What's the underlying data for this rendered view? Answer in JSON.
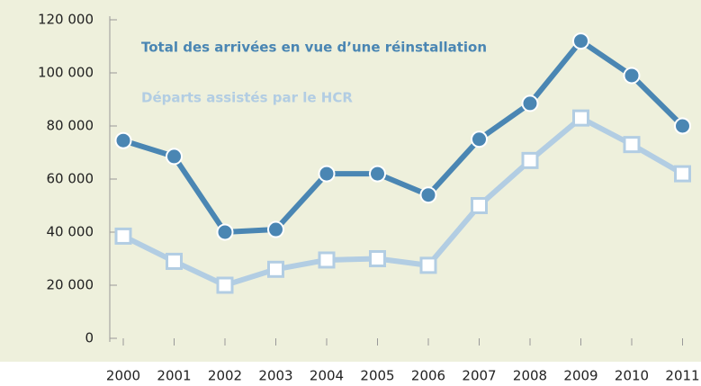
{
  "chart_data": {
    "type": "line",
    "categories": [
      "2000",
      "2001",
      "2002",
      "2003",
      "2004",
      "2005",
      "2006",
      "2007",
      "2008",
      "2009",
      "2010",
      "2011"
    ],
    "series": [
      {
        "name": "Total des arrivées en vue d’une réinstallation",
        "color": "#4a86b3",
        "marker": "circle",
        "values": [
          74500,
          68500,
          40000,
          41000,
          62000,
          62000,
          54000,
          75000,
          88500,
          112000,
          99000,
          80000
        ]
      },
      {
        "name": "Départs assistés par le HCR",
        "color": "#b2cde3",
        "marker": "square",
        "values": [
          38500,
          29000,
          20000,
          26000,
          29500,
          30000,
          27500,
          50000,
          67000,
          83000,
          73000,
          62000
        ]
      }
    ],
    "ylim": [
      0,
      120000
    ],
    "yticks": [
      0,
      {
        "value": 20000,
        "label": "20 000"
      },
      {
        "value": 40000,
        "label": "40 000"
      },
      {
        "value": 60000,
        "label": "60 000"
      },
      {
        "value": 80000,
        "label": "80 000"
      },
      {
        "value": 100000,
        "label": "100 000"
      },
      {
        "value": 120000,
        "label": "120 000"
      }
    ]
  }
}
